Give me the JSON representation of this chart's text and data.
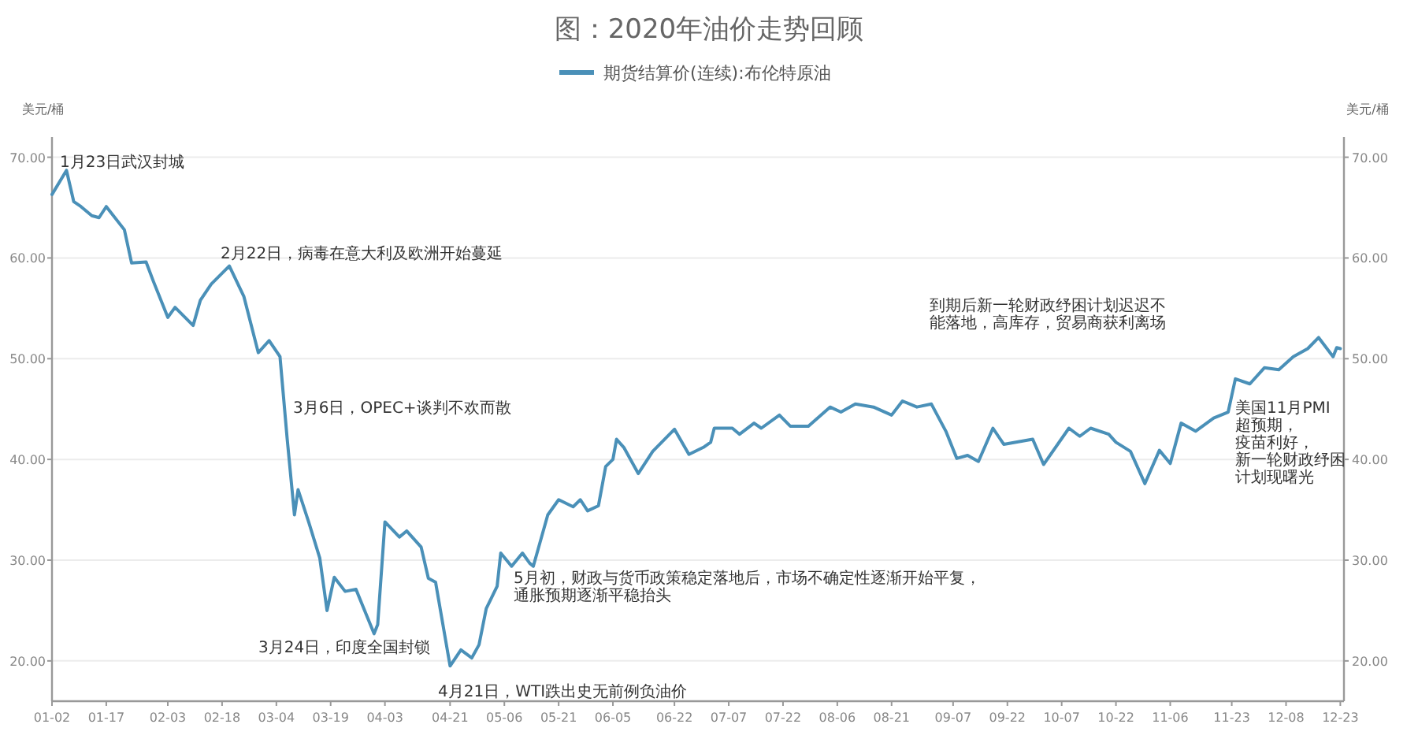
{
  "chart_data": {
    "type": "line",
    "title": "图：2020年油价走势回顾",
    "ylabel": "美元/桶",
    "y2label": "美元/桶",
    "legend": "top",
    "grid": "y",
    "x": [
      "--01-02",
      "--01-06",
      "--01-08",
      "--01-10",
      "--01-13",
      "--01-15",
      "--01-17",
      "--01-22",
      "--01-24",
      "--01-28",
      "--01-30",
      "--02-03",
      "--02-05",
      "--02-10",
      "--02-12",
      "--02-15",
      "--02-20",
      "--02-24",
      "--02-28",
      "--03-02",
      "--03-05",
      "--03-07",
      "--03-09",
      "--03-10",
      "--03-13",
      "--03-16",
      "--03-18",
      "--03-20",
      "--03-23",
      "--03-26",
      "--03-31",
      "--04-01",
      "--04-03",
      "--04-07",
      "--04-09",
      "--04-13",
      "--04-15",
      "--04-17",
      "--04-21",
      "--04-24",
      "--04-27",
      "--04-29",
      "--05-01",
      "--05-04",
      "--05-05",
      "--05-08",
      "--05-11",
      "--05-13",
      "--05-14",
      "--05-18",
      "--05-21",
      "--05-25",
      "--05-27",
      "--05-29",
      "--06-01",
      "--06-03",
      "--06-05",
      "--06-06",
      "--06-08",
      "--06-12",
      "--06-16",
      "--06-22",
      "--06-26",
      "--06-30",
      "--07-02",
      "--07-03",
      "--07-08",
      "--07-10",
      "--07-14",
      "--07-16",
      "--07-21",
      "--07-24",
      "--07-29",
      "--08-04",
      "--08-07",
      "--08-11",
      "--08-16",
      "--08-21",
      "--08-24",
      "--08-28",
      "--09-01",
      "--09-05",
      "--09-08",
      "--09-11",
      "--09-14",
      "--09-18",
      "--09-21",
      "--09-29",
      "--10-02",
      "--10-09",
      "--10-12",
      "--10-15",
      "--10-20",
      "--10-22",
      "--10-26",
      "--10-30",
      "--11-03",
      "--11-06",
      "--11-09",
      "--11-13",
      "--11-18",
      "--11-22",
      "--11-24",
      "--11-28",
      "--12-02",
      "--12-06",
      "--12-10",
      "--12-14",
      "--12-17",
      "--12-21",
      "--12-22",
      "--12-23"
    ],
    "series": [
      {
        "name": "期货结算价(连续):布伦特原油",
        "color": "#4a90b8",
        "values": [
          66.3,
          68.7,
          65.6,
          65.1,
          64.2,
          64.0,
          65.1,
          62.8,
          59.5,
          59.6,
          57.7,
          54.1,
          55.1,
          53.3,
          55.8,
          57.4,
          59.2,
          56.2,
          50.6,
          51.8,
          50.2,
          42.0,
          34.5,
          37.0,
          33.7,
          30.2,
          25.0,
          28.3,
          26.9,
          27.1,
          22.7,
          23.6,
          33.8,
          32.3,
          32.9,
          31.3,
          28.2,
          27.8,
          19.5,
          21.1,
          20.3,
          21.6,
          25.2,
          27.4,
          30.7,
          29.4,
          30.7,
          29.7,
          29.4,
          34.5,
          36.0,
          35.3,
          36.0,
          34.9,
          35.4,
          39.3,
          40.0,
          42.0,
          41.2,
          38.6,
          40.8,
          43.0,
          40.5,
          41.2,
          41.7,
          43.1,
          43.1,
          42.5,
          43.6,
          43.1,
          44.4,
          43.3,
          43.3,
          45.2,
          44.7,
          45.5,
          45.2,
          44.4,
          45.8,
          45.2,
          45.5,
          42.8,
          40.1,
          40.4,
          39.8,
          43.1,
          41.5,
          42.0,
          39.5,
          43.1,
          42.3,
          43.1,
          42.5,
          41.7,
          40.8,
          37.6,
          40.9,
          39.6,
          43.6,
          42.8,
          44.1,
          44.7,
          48.0,
          47.5,
          49.1,
          48.9,
          50.2,
          51.0,
          52.1,
          50.2,
          51.1,
          51.0
        ]
      }
    ],
    "xlim": [
      "--01-02",
      "--12-24"
    ],
    "xticks": [
      {
        "value": "--01-02",
        "label": "01-02"
      },
      {
        "value": "--01-17",
        "label": "01-17"
      },
      {
        "value": "--02-03",
        "label": "02-03"
      },
      {
        "value": "--02-18",
        "label": "02-18"
      },
      {
        "value": "--03-04",
        "label": "03-04"
      },
      {
        "value": "--03-19",
        "label": "03-19"
      },
      {
        "value": "--04-03",
        "label": "04-03"
      },
      {
        "value": "--04-21",
        "label": "04-21"
      },
      {
        "value": "--05-06",
        "label": "05-06"
      },
      {
        "value": "--05-21",
        "label": "05-21"
      },
      {
        "value": "--06-05",
        "label": "06-05"
      },
      {
        "value": "--06-22",
        "label": "06-22"
      },
      {
        "value": "--07-07",
        "label": "07-07"
      },
      {
        "value": "--07-22",
        "label": "07-22"
      },
      {
        "value": "--08-06",
        "label": "08-06"
      },
      {
        "value": "--08-21",
        "label": "08-21"
      },
      {
        "value": "--09-07",
        "label": "09-07"
      },
      {
        "value": "--09-22",
        "label": "09-22"
      },
      {
        "value": "--10-07",
        "label": "10-07"
      },
      {
        "value": "--10-22",
        "label": "10-22"
      },
      {
        "value": "--11-06",
        "label": "11-06"
      },
      {
        "value": "--11-23",
        "label": "11-23"
      },
      {
        "value": "--12-08",
        "label": "12-08"
      },
      {
        "value": "--12-23",
        "label": "12-23"
      }
    ],
    "ylim": [
      16,
      72
    ],
    "yticks": [
      {
        "value": 20,
        "label": "20.00"
      },
      {
        "value": 30,
        "label": "30.00"
      },
      {
        "value": 40,
        "label": "40.00"
      },
      {
        "value": 50,
        "label": "50.00"
      },
      {
        "value": 60,
        "label": "60.00"
      },
      {
        "value": 70,
        "label": "70.00"
      }
    ],
    "y2lim": [
      16,
      72
    ],
    "y2ticks": [
      {
        "value": 20,
        "label": "20.00"
      },
      {
        "value": 30,
        "label": "30.00"
      },
      {
        "value": 40,
        "label": "40.00"
      },
      {
        "value": 50,
        "label": "50.00"
      },
      {
        "value": 60,
        "label": "60.00"
      },
      {
        "value": 70,
        "label": "70.00"
      }
    ],
    "annotations": [
      "1月23日武汉封城",
      "2月22日，病毒在意大利及欧洲开始蔓延",
      "3月6日，OPEC+谈判不欢而散",
      "3月24日，印度全国封锁",
      "4月21日，WTI跌出史无前例负油价",
      "5月初，财政与货币政策稳定落地后，市场不确定性逐渐开始平复，通胀预期逐渐平稳抬头",
      "到期后新一轮财政纾困计划迟迟不能落地，高库存，贸易商获利离场",
      "美国11月PMI超预期，疫苗利好，新一轮财政纾困计划现曙光"
    ]
  }
}
